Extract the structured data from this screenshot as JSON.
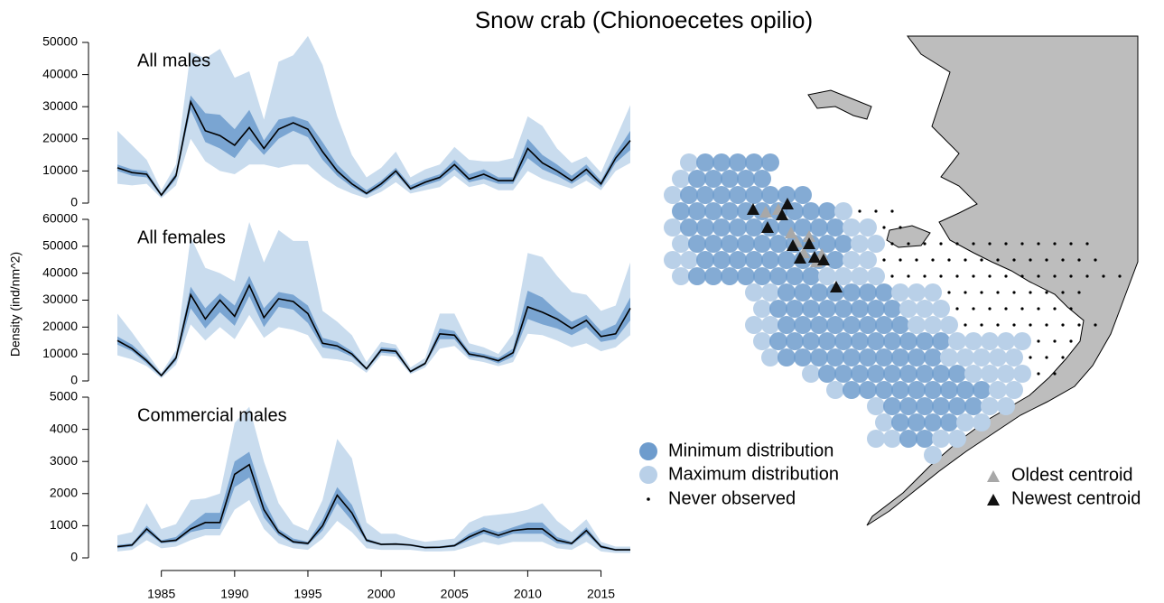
{
  "title": "Snow crab (Chionoecetes opilio)",
  "ylabel": "Density (ind/nm^2)",
  "chart_data": [
    {
      "type": "band-line",
      "title": "All males",
      "color": "#000000",
      "inner_color": "#7aa5d2",
      "outer_color": "#c9dcee",
      "x": [
        1982,
        1983,
        1984,
        1985,
        1986,
        1987,
        1988,
        1989,
        1990,
        1991,
        1992,
        1993,
        1994,
        1995,
        1996,
        1997,
        1998,
        1999,
        2000,
        2001,
        2002,
        2003,
        2004,
        2005,
        2006,
        2007,
        2008,
        2009,
        2010,
        2011,
        2012,
        2013,
        2014,
        2015,
        2016,
        2017
      ],
      "values": [
        11000,
        9500,
        9000,
        2500,
        8500,
        31500,
        22500,
        21000,
        18000,
        23500,
        17000,
        23000,
        25000,
        23000,
        16000,
        10000,
        6000,
        3000,
        6000,
        10000,
        4500,
        6500,
        8000,
        12000,
        7500,
        9000,
        7000,
        7000,
        17000,
        12500,
        10000,
        7000,
        10500,
        6000,
        14000,
        19500
      ],
      "inner_upper": [
        12000,
        10500,
        10000,
        3000,
        9500,
        33500,
        28000,
        27500,
        23000,
        29000,
        19500,
        26000,
        27000,
        25500,
        19000,
        12000,
        7500,
        4000,
        7000,
        11000,
        5500,
        7500,
        9000,
        13500,
        9000,
        10500,
        8000,
        8000,
        20000,
        15000,
        12000,
        8500,
        12000,
        7000,
        15500,
        22500
      ],
      "inner_lower": [
        10000,
        8500,
        8000,
        2000,
        7500,
        29000,
        19000,
        17000,
        14000,
        20000,
        15000,
        20000,
        22500,
        20500,
        13500,
        8500,
        5000,
        2500,
        5000,
        9000,
        4000,
        5500,
        7000,
        10500,
        6500,
        7500,
        6000,
        6000,
        14000,
        10500,
        8500,
        6000,
        9000,
        5000,
        12500,
        16500
      ],
      "outer_upper": [
        22500,
        18000,
        13500,
        4000,
        12000,
        47000,
        45000,
        48000,
        39000,
        41000,
        26000,
        44000,
        46000,
        52000,
        43000,
        27000,
        15000,
        8000,
        11000,
        16000,
        8000,
        10500,
        12000,
        17500,
        13500,
        13000,
        13000,
        14000,
        27000,
        24000,
        17000,
        12500,
        14500,
        9500,
        20000,
        30500
      ],
      "outer_lower": [
        6000,
        5500,
        6000,
        1500,
        5500,
        20000,
        13000,
        10000,
        9000,
        12000,
        12000,
        11000,
        12000,
        12000,
        8000,
        5000,
        3000,
        1500,
        3500,
        6500,
        3000,
        4000,
        5000,
        8500,
        5000,
        6000,
        4000,
        4000,
        10000,
        7500,
        6000,
        4500,
        7000,
        4000,
        10000,
        12500
      ],
      "xlim": [
        1982,
        2017
      ],
      "ylim": [
        0,
        50000
      ],
      "yticks": [
        0,
        10000,
        20000,
        30000,
        40000,
        50000
      ]
    },
    {
      "type": "band-line",
      "title": "All females",
      "color": "#000000",
      "inner_color": "#7aa5d2",
      "outer_color": "#c9dcee",
      "x": [
        1982,
        1983,
        1984,
        1985,
        1986,
        1987,
        1988,
        1989,
        1990,
        1991,
        1992,
        1993,
        1994,
        1995,
        1996,
        1997,
        1998,
        1999,
        2000,
        2001,
        2002,
        2003,
        2004,
        2005,
        2006,
        2007,
        2008,
        2009,
        2010,
        2011,
        2012,
        2013,
        2014,
        2015,
        2016,
        2017
      ],
      "values": [
        15000,
        12000,
        7500,
        2000,
        8500,
        32000,
        23000,
        30000,
        24000,
        35500,
        23500,
        30500,
        29500,
        25000,
        14000,
        13000,
        10000,
        4500,
        11500,
        11000,
        3500,
        6500,
        17500,
        17000,
        10000,
        9000,
        7500,
        10500,
        27500,
        25500,
        23000,
        19500,
        22500,
        16500,
        17500,
        27000
      ],
      "inner_upper": [
        16500,
        13500,
        8500,
        2500,
        9500,
        35000,
        27000,
        32500,
        28000,
        39000,
        27000,
        33000,
        32000,
        28000,
        16000,
        14500,
        11000,
        5000,
        12500,
        12000,
        4000,
        7000,
        19500,
        18500,
        11000,
        10000,
        8500,
        12000,
        33500,
        31000,
        26000,
        22000,
        24500,
        18500,
        21000,
        31000
      ],
      "inner_lower": [
        13500,
        11000,
        6500,
        1500,
        7500,
        27000,
        19500,
        25500,
        20500,
        31500,
        20000,
        27500,
        26500,
        21500,
        12500,
        11500,
        9000,
        4000,
        10500,
        10000,
        3000,
        6000,
        15500,
        15500,
        9000,
        8500,
        6500,
        9000,
        23000,
        21000,
        19500,
        17000,
        20000,
        14500,
        15500,
        22500
      ],
      "outer_upper": [
        25000,
        18000,
        10500,
        3000,
        11500,
        53500,
        42000,
        40000,
        37000,
        59000,
        44000,
        56000,
        52000,
        52000,
        26000,
        22000,
        17000,
        7000,
        14500,
        13500,
        5000,
        8500,
        25000,
        25000,
        14000,
        12500,
        10000,
        17500,
        47500,
        46000,
        39000,
        33000,
        32000,
        26000,
        28000,
        44000
      ],
      "outer_lower": [
        9500,
        8000,
        5500,
        1000,
        6000,
        21000,
        15000,
        20000,
        15500,
        24500,
        16000,
        20000,
        19000,
        17000,
        8500,
        8000,
        7000,
        3000,
        9500,
        9000,
        2500,
        5000,
        12000,
        13000,
        8000,
        7000,
        5500,
        7000,
        17500,
        17000,
        15000,
        12500,
        14000,
        11000,
        12500,
        17000
      ],
      "xlim": [
        1982,
        2017
      ],
      "ylim": [
        0,
        60000
      ],
      "yticks": [
        0,
        10000,
        20000,
        30000,
        40000,
        50000,
        60000
      ]
    },
    {
      "type": "band-line",
      "title": "Commercial males",
      "color": "#000000",
      "inner_color": "#7aa5d2",
      "outer_color": "#c9dcee",
      "x": [
        1982,
        1983,
        1984,
        1985,
        1986,
        1987,
        1988,
        1989,
        1990,
        1991,
        1992,
        1993,
        1994,
        1995,
        1996,
        1997,
        1998,
        1999,
        2000,
        2001,
        2002,
        2003,
        2004,
        2005,
        2006,
        2007,
        2008,
        2009,
        2010,
        2011,
        2012,
        2013,
        2014,
        2015,
        2016,
        2017
      ],
      "values": [
        350,
        400,
        900,
        500,
        550,
        900,
        1100,
        1100,
        2600,
        2900,
        1500,
        800,
        500,
        450,
        1000,
        1950,
        1400,
        550,
        420,
        430,
        400,
        320,
        330,
        380,
        650,
        850,
        700,
        850,
        900,
        900,
        550,
        450,
        850,
        350,
        250,
        250
      ],
      "inner_upper": [
        400,
        450,
        1000,
        550,
        650,
        1050,
        1400,
        1400,
        3000,
        3300,
        1800,
        900,
        600,
        500,
        1200,
        2200,
        1650,
        600,
        450,
        460,
        430,
        350,
        360,
        420,
        750,
        950,
        800,
        950,
        1100,
        1100,
        650,
        500,
        950,
        400,
        280,
        280
      ],
      "inner_lower": [
        300,
        350,
        800,
        450,
        500,
        800,
        900,
        900,
        2200,
        2500,
        1250,
        700,
        450,
        400,
        850,
        1700,
        1150,
        500,
        390,
        400,
        370,
        290,
        300,
        340,
        550,
        750,
        600,
        750,
        750,
        750,
        450,
        400,
        750,
        300,
        220,
        220
      ],
      "outer_upper": [
        700,
        800,
        1700,
        900,
        1050,
        1800,
        1850,
        2000,
        4200,
        4700,
        3000,
        1700,
        1050,
        850,
        1800,
        3700,
        3100,
        1100,
        750,
        750,
        600,
        500,
        550,
        600,
        1100,
        1300,
        1350,
        1400,
        1500,
        1700,
        1150,
        800,
        1200,
        500,
        350,
        350
      ],
      "outer_lower": [
        200,
        250,
        550,
        300,
        350,
        550,
        700,
        700,
        1500,
        1800,
        900,
        450,
        300,
        250,
        600,
        1150,
        800,
        300,
        250,
        250,
        250,
        200,
        200,
        220,
        350,
        500,
        400,
        500,
        500,
        500,
        300,
        250,
        500,
        200,
        150,
        150
      ],
      "xlim": [
        1982,
        2017
      ],
      "ylim": [
        0,
        5000
      ],
      "yticks": [
        0,
        1000,
        2000,
        3000,
        4000,
        5000
      ],
      "xticks": [
        1985,
        1990,
        1995,
        2000,
        2005,
        2010,
        2015
      ]
    },
    {
      "type": "map",
      "legend": [
        {
          "label": "Minimum distribution",
          "color": "#6e9ccd"
        },
        {
          "label": "Maximum distribution",
          "color": "#b9d0e8"
        },
        {
          "label": "Never observed",
          "color": "#000000"
        },
        {
          "label": "Oldest centroid",
          "color": "#a8a8a8"
        },
        {
          "label": "Newest centroid",
          "color": "#111111"
        }
      ]
    }
  ]
}
